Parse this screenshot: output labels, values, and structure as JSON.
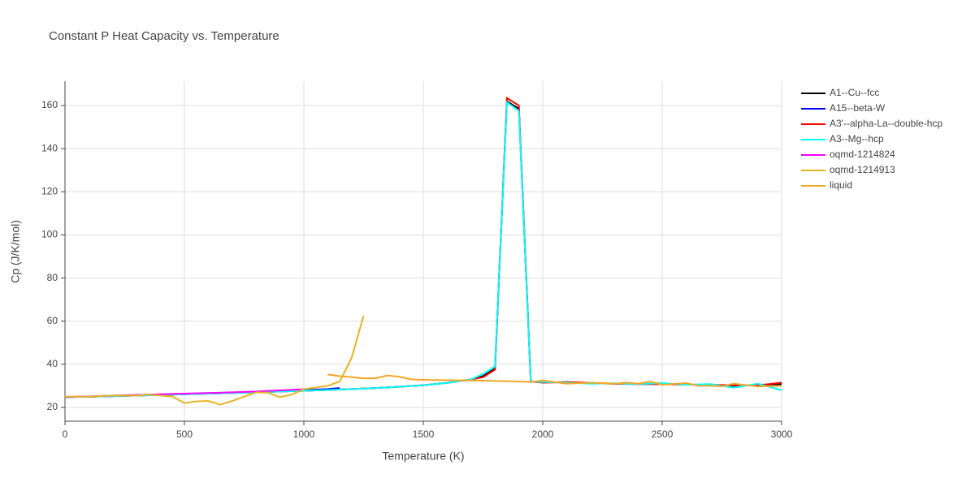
{
  "chart_data": {
    "type": "line",
    "title": "Constant P Heat Capacity vs. Temperature",
    "x_label": "Temperature (K)",
    "y_label": "Cp (J/K/mol)",
    "xlim": [
      0,
      3000
    ],
    "ylim": [
      13.6,
      171.3
    ],
    "xticks": [
      0,
      500,
      1000,
      1500,
      2000,
      2500,
      3000
    ],
    "yticks": [
      20,
      40,
      60,
      80,
      100,
      120,
      140,
      160
    ],
    "grid": true,
    "legend": "right",
    "series": [
      {
        "name": "A1--Cu--fcc",
        "color": "#000000",
        "x": [
          0,
          100,
          200,
          300,
          400,
          500,
          600,
          700,
          800,
          900,
          1000,
          1100,
          1200,
          1300,
          1400,
          1500,
          1600,
          1700,
          1750,
          1800,
          1850,
          1900,
          1950,
          2000,
          2100,
          2200,
          2300,
          2400,
          2500,
          2600,
          2700,
          2800,
          2900,
          3000
        ],
        "values": [
          24.8,
          25,
          25.2,
          25.5,
          25.8,
          26.1,
          26.4,
          26.7,
          27,
          27.4,
          27.7,
          28.1,
          28.5,
          29,
          29.6,
          30.3,
          31.4,
          33,
          34.5,
          38,
          162,
          158.5,
          32,
          31.6,
          31.6,
          31.2,
          31,
          30.8,
          30.8,
          30.6,
          30.5,
          30,
          30.5,
          30.8
        ]
      },
      {
        "name": "A15--beta-W",
        "color": "#0000ff",
        "x": [
          0,
          100,
          200,
          300,
          400,
          500,
          600,
          700,
          800,
          900,
          1000,
          1100,
          1150
        ],
        "values": [
          24.8,
          25,
          25.3,
          25.6,
          25.9,
          26.2,
          26.5,
          26.8,
          27.2,
          27.6,
          28,
          28.5,
          29
        ]
      },
      {
        "name": "A3'--alpha-La--double-hcp",
        "color": "#ff0000",
        "x": [
          0,
          100,
          200,
          300,
          400,
          500,
          600,
          700,
          800,
          900,
          1000,
          1100,
          1200,
          1300,
          1400,
          1500,
          1600,
          1700,
          1750,
          1800,
          1850,
          1900,
          1950,
          2000,
          2100,
          2200,
          2300,
          2400,
          2500,
          2600,
          2700,
          2800,
          2900,
          3000
        ],
        "values": [
          24.8,
          25,
          25.2,
          25.5,
          25.8,
          26.1,
          26.4,
          26.7,
          27,
          27.4,
          27.7,
          28.1,
          28.5,
          29,
          29.6,
          30.3,
          31.4,
          33,
          34,
          37.5,
          163.5,
          160,
          32,
          31.5,
          31.8,
          31.4,
          31,
          30.8,
          30.8,
          30.6,
          30.5,
          30.3,
          30.2,
          31.5
        ]
      },
      {
        "name": "A3--Mg--hcp",
        "color": "#00ffff",
        "x": [
          0,
          100,
          200,
          300,
          400,
          500,
          600,
          700,
          800,
          900,
          1000,
          1100,
          1200,
          1300,
          1400,
          1500,
          1600,
          1700,
          1750,
          1800,
          1850,
          1900,
          1950,
          2000,
          2100,
          2200,
          2300,
          2400,
          2500,
          2600,
          2700,
          2800,
          2900,
          3000
        ],
        "values": [
          24.8,
          25,
          25.2,
          25.5,
          25.8,
          26.1,
          26.4,
          26.7,
          27,
          27.4,
          27.7,
          28.1,
          28.5,
          29,
          29.6,
          30.3,
          31.4,
          33,
          35.5,
          39,
          161.5,
          157.5,
          32,
          31.8,
          31.5,
          31,
          31.2,
          30.8,
          31.3,
          30.5,
          30.8,
          29.2,
          31,
          28
        ]
      },
      {
        "name": "oqmd-1214824",
        "color": "#ff00ff",
        "x": [
          0,
          100,
          200,
          300,
          400,
          500,
          600,
          700,
          800,
          900,
          1000
        ],
        "values": [
          24.9,
          25.1,
          25.5,
          25.8,
          26.1,
          26.4,
          26.7,
          27,
          27.4,
          27.9,
          28.4
        ]
      },
      {
        "name": "oqmd-1214913",
        "color": "#e6b422",
        "x": [
          0,
          50,
          100,
          150,
          200,
          250,
          300,
          350,
          400,
          450,
          500,
          550,
          600,
          650,
          700,
          750,
          800,
          850,
          900,
          950,
          1000,
          1050,
          1100,
          1150,
          1200,
          1250
        ],
        "values": [
          25,
          25,
          25,
          25.3,
          25.5,
          25.5,
          25.5,
          26,
          25.5,
          25,
          22,
          22.8,
          23,
          21.3,
          23,
          25,
          27,
          26.8,
          24.7,
          26,
          28.5,
          29.2,
          30,
          32,
          43,
          62.5
        ]
      },
      {
        "name": "liquid",
        "color": "#f5a623",
        "x": [
          1100,
          1150,
          1200,
          1250,
          1300,
          1350,
          1400,
          1450,
          1500,
          1600,
          1700,
          1800,
          1900,
          1950,
          2000,
          2100,
          2200,
          2300,
          2350,
          2400,
          2450,
          2500,
          2600,
          2650,
          2700,
          2750,
          2800,
          2900,
          3000
        ],
        "values": [
          35.3,
          34.5,
          34,
          33.5,
          33.5,
          34.8,
          34.2,
          33,
          32.8,
          32.6,
          32.5,
          32.3,
          32,
          31.8,
          32.5,
          31,
          31.5,
          31,
          31.5,
          31,
          32,
          30.5,
          31.3,
          30,
          30,
          29.8,
          31,
          29.7,
          30
        ]
      }
    ]
  }
}
